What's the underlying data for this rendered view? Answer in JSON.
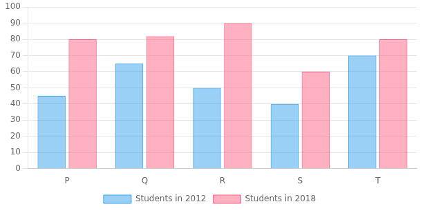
{
  "chart_data": {
    "type": "bar",
    "categories": [
      "P",
      "Q",
      "R",
      "S",
      "T"
    ],
    "series": [
      {
        "name": "Students in 2012",
        "values": [
          45,
          65,
          50,
          40,
          70
        ]
      },
      {
        "name": "Students in 2018",
        "values": [
          80,
          82,
          90,
          60,
          80
        ]
      }
    ],
    "ylim": [
      0,
      100
    ],
    "yticks": [
      0,
      10,
      20,
      30,
      40,
      50,
      60,
      70,
      80,
      90,
      100
    ],
    "grid": true,
    "legend": "bottom"
  }
}
